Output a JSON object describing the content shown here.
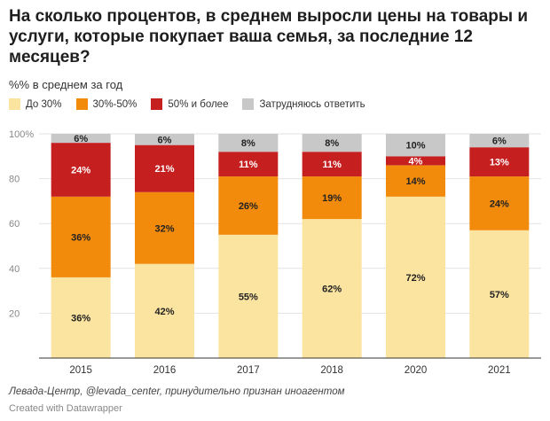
{
  "chart_data": {
    "type": "bar",
    "stacked": true,
    "title": "На сколько процентов, в среднем выросли цены на товары и услуги, которые покупает ваша семья, за последние 12 месяцев?",
    "subtitle": "%% в среднем за год",
    "categories": [
      "2015",
      "2016",
      "2017",
      "2018",
      "2020",
      "2021"
    ],
    "series": [
      {
        "name": "До 30%",
        "color": "#fbe3a0",
        "values": [
          36,
          42,
          55,
          62,
          72,
          57
        ]
      },
      {
        "name": "30%-50%",
        "color": "#f28a0c",
        "values": [
          36,
          32,
          26,
          19,
          14,
          24
        ]
      },
      {
        "name": "50% и более",
        "color": "#c51f1f",
        "values": [
          24,
          21,
          11,
          11,
          4,
          13
        ]
      },
      {
        "name": "Затрудняюсь ответить",
        "color": "#c8c8c8",
        "values": [
          6,
          6,
          8,
          8,
          10,
          6
        ]
      }
    ],
    "data_labels": [
      [
        "36%",
        "42%",
        "55%",
        "62%",
        "72%",
        "57%"
      ],
      [
        "36%",
        "32%",
        "26%",
        "19%",
        "14%",
        "24%"
      ],
      [
        "24%",
        "21%",
        "11%",
        "11%",
        "4%",
        "13%"
      ],
      [
        "6%",
        "6%",
        "8%",
        "8%",
        "10%",
        "6%"
      ]
    ],
    "ylim": [
      0,
      100
    ],
    "yticks": [
      20,
      40,
      60,
      80
    ],
    "yticks_top_label": "100%",
    "grid": true,
    "legend_position": "top-left"
  },
  "footer": {
    "source": "Левада-Центр, @levada_center, принудительно признан иноагентом",
    "credit": "Created with Datawrapper"
  }
}
